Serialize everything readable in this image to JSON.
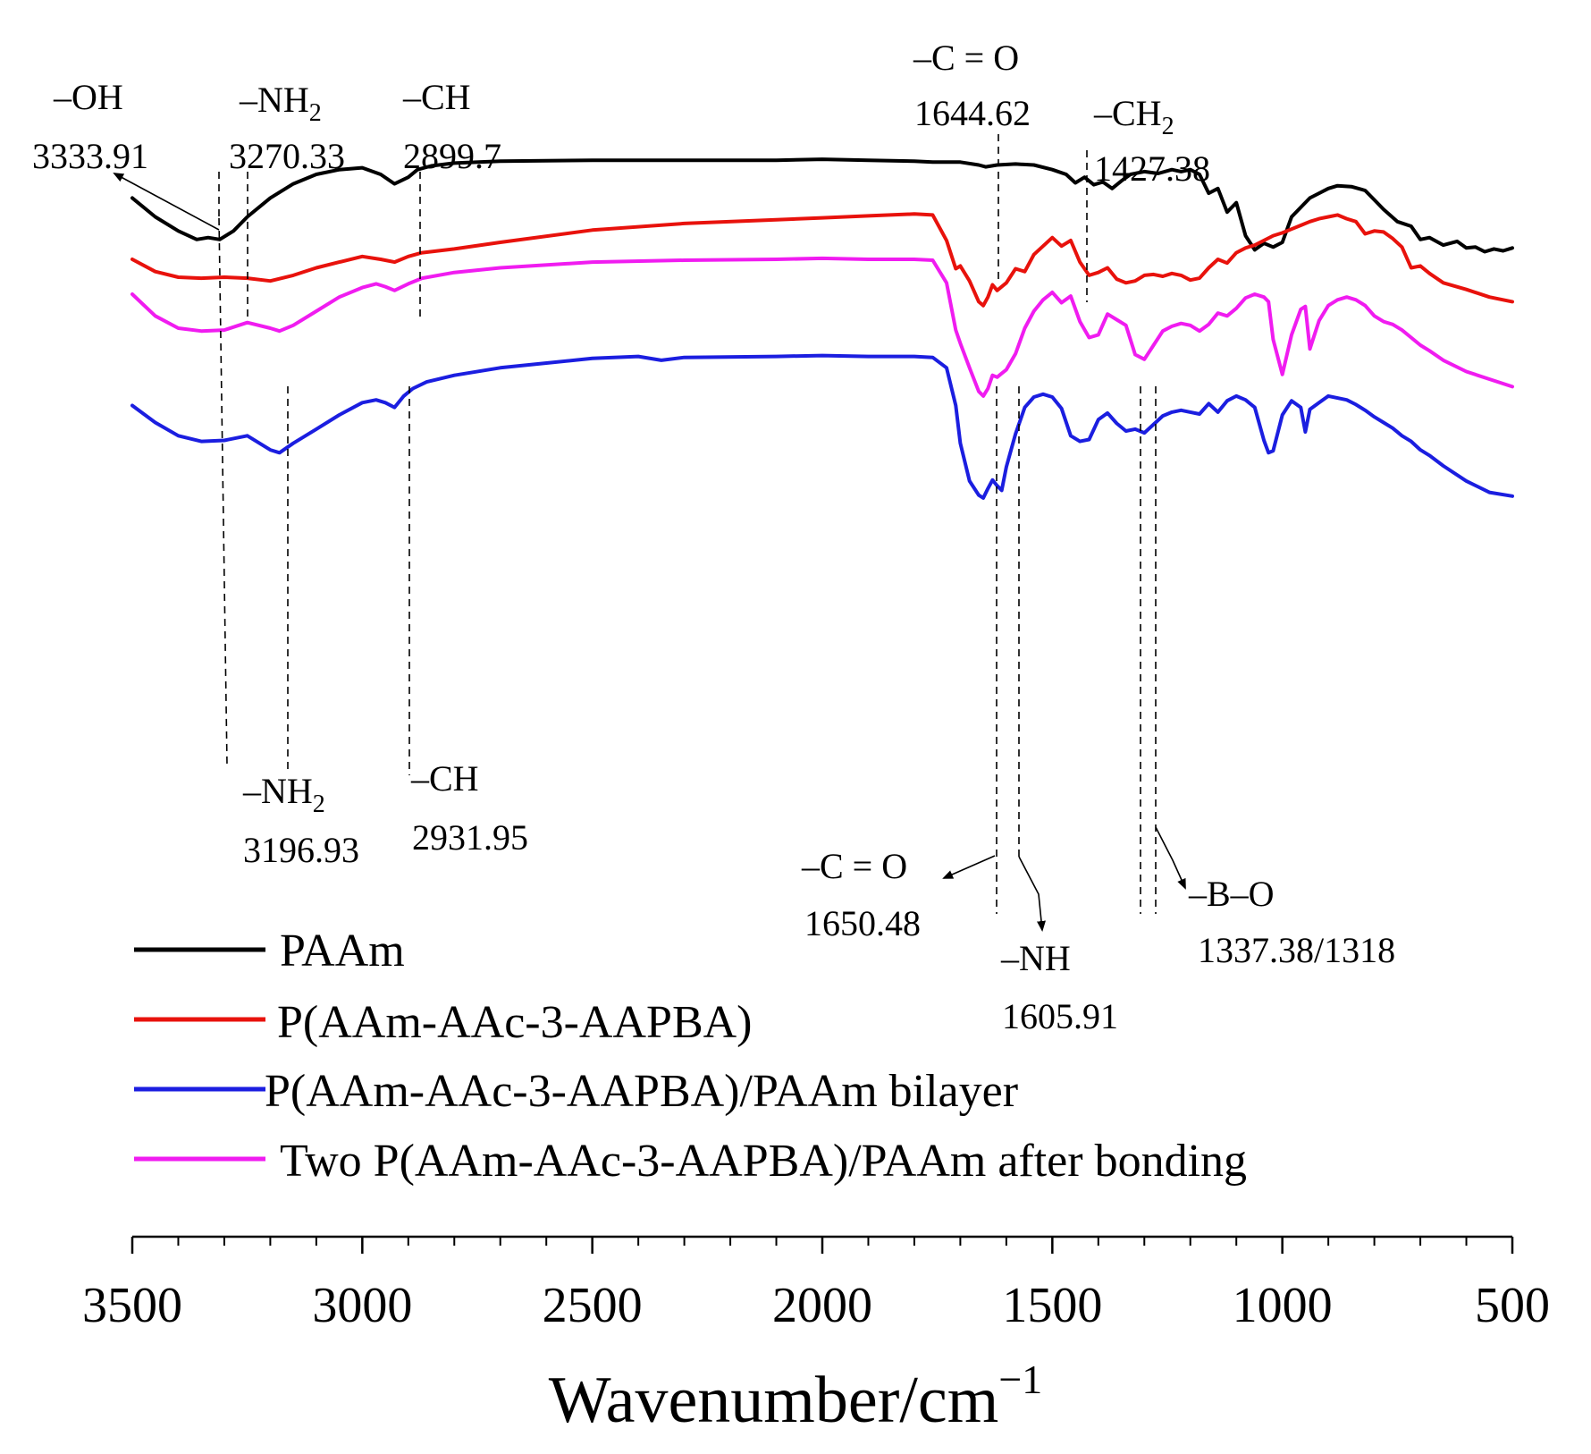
{
  "chart_data": {
    "type": "line",
    "title": "",
    "xlabel": "Wavenumber/cm",
    "xlabel_superscript": "−1",
    "ylabel": "",
    "xlim": [
      3500,
      500
    ],
    "x_reversed": true,
    "grid": false,
    "x_ticks": [
      "3500",
      "3000",
      "2500",
      "2000",
      "1500",
      "1000",
      "500"
    ],
    "x_tick_values": [
      3500,
      3000,
      2500,
      2000,
      1500,
      1000,
      500
    ],
    "legend_position": "bottom-left",
    "series": [
      {
        "name": "PAAm",
        "color": "#000000",
        "x": [
          3500,
          3450,
          3400,
          3360,
          3335,
          3310,
          3280,
          3250,
          3200,
          3150,
          3100,
          3050,
          3000,
          2960,
          2930,
          2900,
          2880,
          2850,
          2800,
          2700,
          2500,
          2300,
          2100,
          2000,
          1900,
          1800,
          1760,
          1700,
          1660,
          1645,
          1620,
          1580,
          1540,
          1500,
          1470,
          1450,
          1430,
          1410,
          1390,
          1370,
          1350,
          1330,
          1300,
          1270,
          1240,
          1220,
          1200,
          1180,
          1160,
          1140,
          1120,
          1100,
          1080,
          1060,
          1040,
          1020,
          1000,
          980,
          960,
          940,
          920,
          900,
          880,
          850,
          820,
          800,
          780,
          750,
          720,
          700,
          680,
          650,
          620,
          600,
          580,
          560,
          540,
          520,
          500
        ],
        "y": [
          92,
          90,
          88.5,
          87.6,
          87.8,
          87.6,
          88.5,
          90,
          92,
          93.5,
          94.5,
          95,
          95.2,
          94.5,
          93.5,
          94.2,
          95,
          95.4,
          95.7,
          95.9,
          96,
          96,
          96,
          96.1,
          96,
          95.9,
          95.8,
          95.8,
          95.5,
          95.3,
          95.5,
          95.6,
          95.5,
          95,
          94.5,
          93.6,
          94.2,
          93.4,
          93.7,
          93,
          93.8,
          94.5,
          94.8,
          94.6,
          95,
          94.8,
          95,
          94.5,
          92.5,
          93,
          90.5,
          91.5,
          88,
          86.5,
          87.2,
          86.8,
          87.3,
          90,
          91,
          92,
          92.5,
          93,
          93.3,
          93.2,
          92.8,
          91.8,
          90.8,
          89.5,
          89,
          87.6,
          87.8,
          87,
          87.4,
          86.7,
          86.8,
          86.3,
          86.6,
          86.4,
          86.7
        ]
      },
      {
        "name": "P(AAm-AAc-3-AAPBA)",
        "color": "#e8120c",
        "x": [
          3500,
          3450,
          3400,
          3350,
          3300,
          3250,
          3200,
          3150,
          3100,
          3050,
          3000,
          2960,
          2930,
          2900,
          2870,
          2800,
          2700,
          2500,
          2300,
          2100,
          2000,
          1900,
          1800,
          1760,
          1730,
          1710,
          1700,
          1680,
          1660,
          1650,
          1640,
          1630,
          1620,
          1610,
          1600,
          1580,
          1560,
          1540,
          1520,
          1500,
          1480,
          1460,
          1440,
          1420,
          1400,
          1380,
          1360,
          1340,
          1320,
          1300,
          1280,
          1260,
          1240,
          1220,
          1200,
          1180,
          1160,
          1140,
          1120,
          1100,
          1080,
          1060,
          1040,
          1020,
          1000,
          980,
          960,
          940,
          920,
          900,
          880,
          860,
          840,
          820,
          800,
          780,
          760,
          740,
          720,
          700,
          680,
          650,
          600,
          550,
          500
        ],
        "y": [
          85.5,
          84.2,
          83.6,
          83.5,
          83.6,
          83.5,
          83.2,
          83.8,
          84.6,
          85.2,
          85.8,
          85.5,
          85.2,
          85.8,
          86.2,
          86.6,
          87.3,
          88.6,
          89.3,
          89.7,
          89.9,
          90.1,
          90.3,
          90.2,
          87.5,
          84.5,
          84.8,
          83.2,
          81,
          80.6,
          81.5,
          82.8,
          82.2,
          82.6,
          83,
          84.5,
          84.2,
          86,
          86.9,
          87.8,
          86.9,
          87.5,
          85.2,
          83.8,
          84.1,
          84.6,
          83.4,
          83,
          83.2,
          83.8,
          83.9,
          83.7,
          84,
          83.8,
          83.3,
          83.5,
          84.6,
          85.5,
          85.1,
          86.2,
          86.7,
          87,
          87.5,
          88,
          88.3,
          88.7,
          89.1,
          89.5,
          89.8,
          90,
          90.2,
          89.8,
          89.5,
          88.2,
          88.5,
          88.4,
          87.7,
          86.8,
          84.6,
          84.8,
          84,
          83,
          82.3,
          81.5,
          81
        ]
      },
      {
        "name": "P(AAm-AAc-3-AAPBA)/PAAm bilayer",
        "color": "#1b1ee0",
        "x": [
          3500,
          3450,
          3400,
          3350,
          3300,
          3250,
          3200,
          3180,
          3150,
          3100,
          3050,
          3000,
          2970,
          2950,
          2930,
          2910,
          2890,
          2860,
          2800,
          2700,
          2500,
          2400,
          2350,
          2300,
          2100,
          2000,
          1900,
          1800,
          1760,
          1730,
          1710,
          1700,
          1680,
          1660,
          1650,
          1640,
          1630,
          1620,
          1610,
          1600,
          1580,
          1560,
          1540,
          1520,
          1500,
          1480,
          1460,
          1440,
          1420,
          1400,
          1380,
          1360,
          1340,
          1320,
          1300,
          1280,
          1260,
          1240,
          1220,
          1200,
          1180,
          1160,
          1140,
          1120,
          1100,
          1080,
          1060,
          1040,
          1030,
          1020,
          1000,
          980,
          960,
          950,
          940,
          920,
          900,
          880,
          860,
          840,
          820,
          800,
          780,
          760,
          740,
          720,
          700,
          680,
          650,
          600,
          550,
          500
        ],
        "y": [
          70,
          68.2,
          66.8,
          66.2,
          66.3,
          66.8,
          65.3,
          65,
          66,
          67.5,
          69,
          70.3,
          70.6,
          70.3,
          69.8,
          71,
          71.8,
          72.5,
          73.2,
          74,
          75,
          75.2,
          74.8,
          75.1,
          75.2,
          75.3,
          75.2,
          75.2,
          75.1,
          74,
          70,
          66,
          62,
          60.5,
          60.2,
          61.2,
          62.1,
          61.5,
          61,
          63.5,
          67,
          69.8,
          70.9,
          71.2,
          70.9,
          69.7,
          66.8,
          66.2,
          66.4,
          68.5,
          69.2,
          68.1,
          67.3,
          67.5,
          67.1,
          68,
          68.9,
          69.3,
          69.5,
          69.3,
          69.1,
          70.2,
          69.3,
          70.5,
          71,
          70.6,
          69.8,
          66.3,
          65,
          65.2,
          69,
          70.5,
          69.8,
          67.2,
          69.6,
          70.3,
          71,
          70.8,
          70.6,
          70.1,
          69.5,
          68.8,
          68.2,
          67.6,
          66.8,
          66.2,
          65.3,
          64.7,
          63.6,
          62,
          60.8,
          60.4
        ]
      },
      {
        "name": "Two P(AAm-AAc-3-AAPBA)/PAAm after bonding",
        "color": "#f01cf0",
        "x": [
          3500,
          3450,
          3400,
          3350,
          3300,
          3250,
          3200,
          3180,
          3150,
          3100,
          3050,
          3000,
          2970,
          2950,
          2930,
          2900,
          2870,
          2800,
          2700,
          2500,
          2300,
          2100,
          2000,
          1900,
          1800,
          1760,
          1730,
          1710,
          1700,
          1680,
          1660,
          1650,
          1640,
          1630,
          1620,
          1610,
          1600,
          1580,
          1560,
          1540,
          1520,
          1500,
          1480,
          1460,
          1440,
          1420,
          1400,
          1380,
          1360,
          1340,
          1320,
          1300,
          1280,
          1260,
          1240,
          1220,
          1200,
          1180,
          1160,
          1140,
          1120,
          1100,
          1080,
          1060,
          1040,
          1030,
          1020,
          1000,
          980,
          960,
          950,
          940,
          920,
          900,
          880,
          860,
          840,
          820,
          800,
          780,
          760,
          740,
          720,
          700,
          680,
          650,
          600,
          550,
          500
        ],
        "y": [
          81.8,
          79.5,
          78.2,
          77.9,
          78,
          78.8,
          78.2,
          77.9,
          78.5,
          80,
          81.5,
          82.5,
          82.9,
          82.6,
          82.2,
          82.9,
          83.5,
          84.1,
          84.6,
          85.2,
          85.4,
          85.5,
          85.6,
          85.5,
          85.5,
          85.4,
          83,
          78,
          76.6,
          74,
          71.5,
          71,
          71.8,
          73.2,
          73,
          73.4,
          73.8,
          75.5,
          78.2,
          80,
          81.2,
          82,
          80.9,
          81.6,
          78.9,
          77.2,
          77.5,
          79.7,
          79.1,
          78.5,
          75.4,
          74.9,
          76.4,
          77.9,
          78.4,
          78.7,
          78.5,
          77.9,
          78.6,
          79.8,
          79.5,
          80.3,
          81.4,
          81.8,
          81.5,
          81,
          77,
          73.3,
          77.5,
          80.2,
          80.5,
          76,
          79,
          80.6,
          81.2,
          81.5,
          81.2,
          80.6,
          79.5,
          78.9,
          78.6,
          78,
          77.2,
          76.4,
          75.8,
          74.8,
          73.6,
          72.8,
          72
        ]
      }
    ],
    "annotations": [
      {
        "id": "oh",
        "group": "PAAm",
        "label": "–OH",
        "value": "3333.91",
        "wavenumber": 3333.91
      },
      {
        "id": "nh2-top",
        "group": "PAAm",
        "label": "–NH",
        "label_subscript": "2",
        "value": "3270.33",
        "wavenumber": 3270.33
      },
      {
        "id": "ch-top",
        "group": "PAAm",
        "label": "–CH",
        "value": "2899.7",
        "wavenumber": 2899.7
      },
      {
        "id": "co-top",
        "group": "PAAm",
        "label": "–C = O",
        "value": "1644.62",
        "wavenumber": 1644.62
      },
      {
        "id": "ch2",
        "group": "PAAm",
        "label": "–CH",
        "label_subscript": "2",
        "value": "1427.38",
        "wavenumber": 1427.38
      },
      {
        "id": "nh2-bottom",
        "group": "composite",
        "label": "–NH",
        "label_subscript": "2",
        "value": "3196.93",
        "wavenumber": 3196.93
      },
      {
        "id": "ch-bottom",
        "group": "composite",
        "label": "–CH",
        "value": "2931.95",
        "wavenumber": 2931.95
      },
      {
        "id": "co-bottom",
        "group": "composite",
        "label": "–C = O",
        "value": "1650.48",
        "wavenumber": 1650.48
      },
      {
        "id": "nh",
        "group": "composite",
        "label": "–NH",
        "value": "1605.91",
        "wavenumber": 1605.91
      },
      {
        "id": "bo",
        "group": "composite",
        "label": "–B–O",
        "value": "1337.38/1318",
        "wavenumbers": [
          1337.38,
          1318
        ]
      }
    ]
  }
}
